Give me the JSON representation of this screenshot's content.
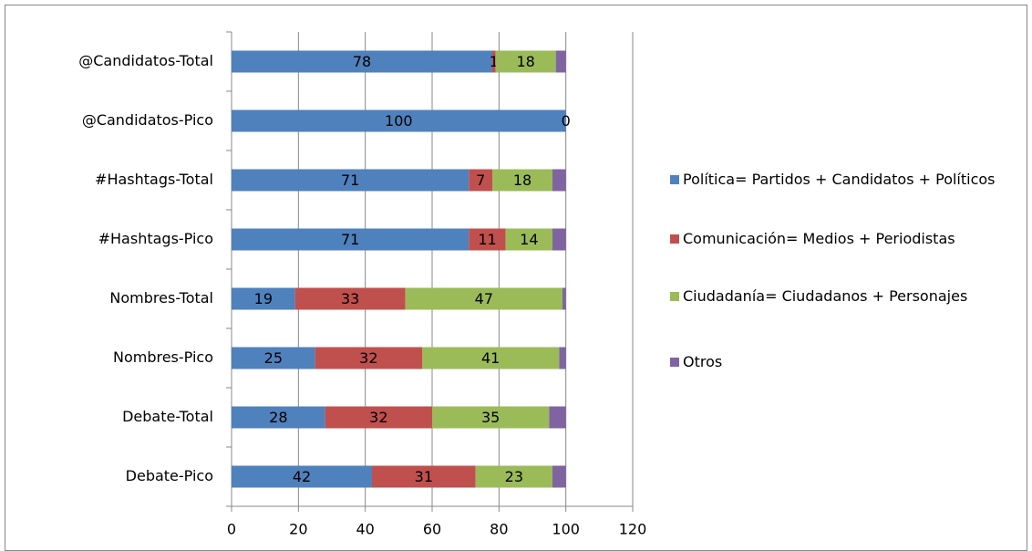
{
  "chart_data": {
    "type": "stacked-barh",
    "categories": [
      "@Candidatos-Total",
      "@Candidatos-Pico",
      "#Hashtags-Total",
      "#Hashtags-Pico",
      "Nombres-Total",
      "Nombres-Pico",
      "Debate-Total",
      "Debate-Pico"
    ],
    "series": [
      {
        "name": "Política= Partidos + Candidatos + Políticos",
        "color": "#4f81bd",
        "data_labels": true,
        "values": [
          78,
          100,
          71,
          71,
          19,
          25,
          28,
          42
        ]
      },
      {
        "name": "Comunicación= Medios + Periodistas",
        "color": "#c0504d",
        "data_labels": true,
        "values": [
          1,
          0,
          7,
          11,
          33,
          32,
          32,
          31
        ]
      },
      {
        "name": "Ciudadanía= Ciudadanos + Personajes",
        "color": "#9bbb59",
        "data_labels": true,
        "values": [
          18,
          null,
          18,
          14,
          47,
          41,
          35,
          23
        ]
      },
      {
        "name": "Otros",
        "color": "#8064a2",
        "data_labels": false,
        "values": [
          3,
          null,
          4,
          4,
          1,
          2,
          5,
          4
        ]
      }
    ],
    "xlim": [
      0,
      120
    ],
    "xticks": [
      0,
      20,
      40,
      60,
      80,
      100,
      120
    ],
    "grid": true,
    "legend": "right"
  }
}
